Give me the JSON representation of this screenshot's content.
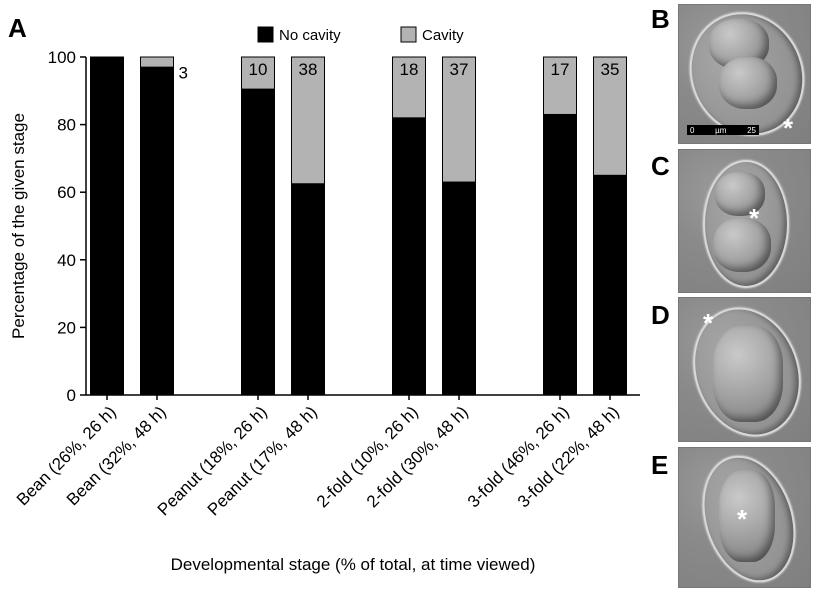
{
  "panel_a_label": "A",
  "chart_data": {
    "type": "bar",
    "stacked": true,
    "categories": [
      "Bean (26%, 26 h)",
      "Bean (32%, 48 h)",
      "Peanut (18%, 26 h)",
      "Peanut (17%, 48 h)",
      "2-fold (10%, 26 h)",
      "2-fold (30%, 48 h)",
      "3-fold (46%, 26 h)",
      "3-fold (22%, 48 h)"
    ],
    "series": [
      {
        "name": "No cavity",
        "color": "#000000",
        "values": [
          100,
          97,
          90.5,
          62.5,
          82,
          63,
          83,
          65
        ]
      },
      {
        "name": "Cavity",
        "color": "#b3b3b3",
        "values": [
          0,
          3,
          9.5,
          37.5,
          18,
          37,
          17,
          35
        ]
      }
    ],
    "bar_labels": [
      "",
      "3",
      "10",
      "38",
      "18",
      "37",
      "17",
      "35"
    ],
    "ylabel": "Percentage of the given stage",
    "xlabel": "Developmental stage (% of total, at time viewed)",
    "ylim": [
      0,
      100
    ],
    "yticks": [
      0,
      20,
      40,
      60,
      80,
      100
    ],
    "legend_position": "top",
    "grid": false
  },
  "micrographs": [
    {
      "label": "B",
      "has_scale_bar": true,
      "scale_bar": {
        "left": "0",
        "unit": "µm",
        "right": "25"
      }
    },
    {
      "label": "C",
      "has_scale_bar": false
    },
    {
      "label": "D",
      "has_scale_bar": false
    },
    {
      "label": "E",
      "has_scale_bar": false
    }
  ],
  "marker": "*"
}
